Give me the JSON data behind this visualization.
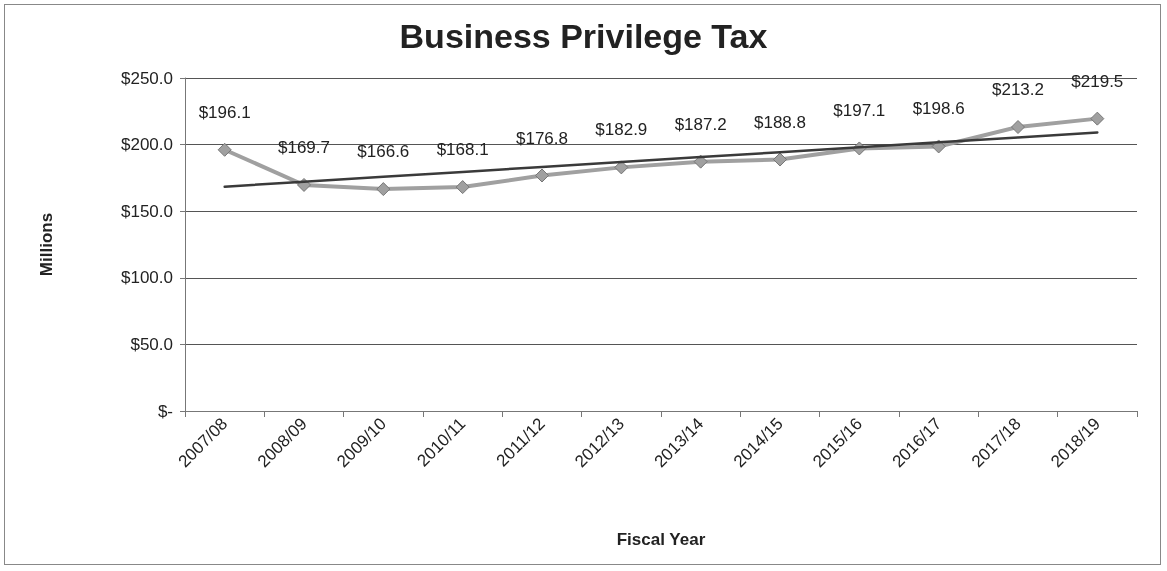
{
  "chart_data": {
    "type": "line",
    "title": "Business Privilege Tax",
    "xlabel": "Fiscal Year",
    "ylabel": "Millions",
    "categories": [
      "2007/08",
      "2008/09",
      "2009/10",
      "2010/11",
      "2011/12",
      "2012/13",
      "2013/14",
      "2014/15",
      "2015/16",
      "2016/17",
      "2017/18",
      "2018/19"
    ],
    "series": [
      {
        "color": "#a0a0a0",
        "marker": "diamond",
        "values": [
          196.1,
          169.7,
          166.6,
          168.1,
          176.8,
          182.9,
          187.2,
          188.8,
          197.1,
          198.6,
          213.2,
          219.5
        ],
        "value_labels": [
          "$196.1",
          "$169.7",
          "$166.6",
          "$168.1",
          "$176.8",
          "$182.9",
          "$187.2",
          "$188.8",
          "$197.1",
          "$198.6",
          "$213.2",
          "$219.5"
        ]
      },
      {
        "type": "line",
        "color": "#3a3a3a",
        "marker": "none",
        "values": [
          168.4,
          172.1,
          175.8,
          179.5,
          183.2,
          186.9,
          190.6,
          194.3,
          198.0,
          201.7,
          205.4,
          209.1
        ]
      }
    ],
    "ylim": [
      0,
      250
    ],
    "yticks": [
      {
        "value": 0,
        "label": "$-"
      },
      {
        "value": 50,
        "label": "$50.0"
      },
      {
        "value": 100,
        "label": "$100.0"
      },
      {
        "value": 150,
        "label": "$150.0"
      },
      {
        "value": 200,
        "label": "$200.0"
      },
      {
        "value": 250,
        "label": "$250.0"
      }
    ],
    "grid": "y",
    "line_style": "solid"
  }
}
